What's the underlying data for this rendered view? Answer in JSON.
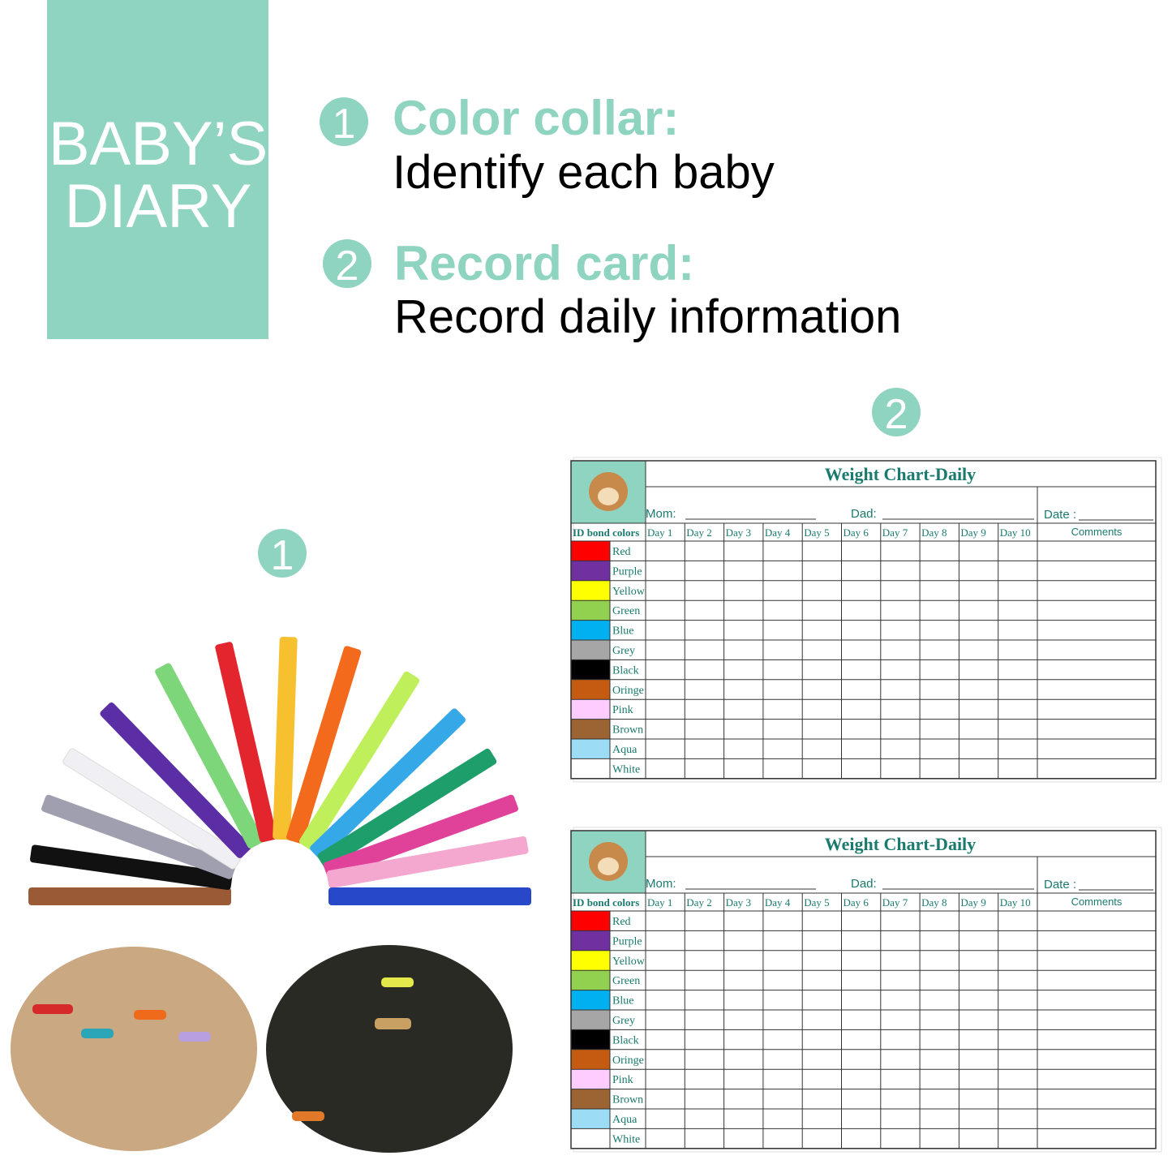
{
  "banner": {
    "lines": [
      "BABY’S",
      "DIARY"
    ]
  },
  "features": [
    {
      "number": "1",
      "title": "Color collar:",
      "text": "Identify each baby"
    },
    {
      "number": "2",
      "title": "Record card:",
      "text": "Record daily information"
    }
  ],
  "markers": [
    "1",
    "2"
  ],
  "cards": [
    {
      "title": "Weight Chart-Daily",
      "mom": "Mom:",
      "dad": "Dad:",
      "date": "Date :",
      "id_header": "ID bond colors",
      "days": [
        "Day 1",
        "Day 2",
        "Day 3",
        "Day 4",
        "Day 5",
        "Day 6",
        "Day 7",
        "Day 8",
        "Day 9",
        "Day 10"
      ],
      "comments": "Comments",
      "rows": [
        {
          "name": "Red",
          "color": "#ff0000"
        },
        {
          "name": "Purple",
          "color": "#7030a0"
        },
        {
          "name": "Yellow",
          "color": "#ffff00"
        },
        {
          "name": "Green",
          "color": "#92d050"
        },
        {
          "name": "Blue",
          "color": "#00b0f0"
        },
        {
          "name": "Grey",
          "color": "#a6a6a6"
        },
        {
          "name": "Black",
          "color": "#000000"
        },
        {
          "name": "Oringe",
          "color": "#c55a11"
        },
        {
          "name": "Pink",
          "color": "#ffccff"
        },
        {
          "name": "Brown",
          "color": "#9c6432"
        },
        {
          "name": "Aqua",
          "color": "#9ddcf5"
        },
        {
          "name": "White",
          "color": "#ffffff"
        }
      ]
    },
    {
      "title": "Weight Chart-Daily",
      "mom": "Mom:",
      "dad": "Dad:",
      "date": "Date :",
      "id_header": "ID bond colors",
      "days": [
        "Day 1",
        "Day 2",
        "Day 3",
        "Day 4",
        "Day 5",
        "Day 6",
        "Day 7",
        "Day 8",
        "Day 9",
        "Day 10"
      ],
      "comments": "Comments",
      "rows": [
        {
          "name": "Red",
          "color": "#ff0000"
        },
        {
          "name": "Purple",
          "color": "#7030a0"
        },
        {
          "name": "Yellow",
          "color": "#ffff00"
        },
        {
          "name": "Green",
          "color": "#92d050"
        },
        {
          "name": "Blue",
          "color": "#00b0f0"
        },
        {
          "name": "Grey",
          "color": "#a6a6a6"
        },
        {
          "name": "Black",
          "color": "#000000"
        },
        {
          "name": "Oringe",
          "color": "#c55a11"
        },
        {
          "name": "Pink",
          "color": "#ffccff"
        },
        {
          "name": "Brown",
          "color": "#9c6432"
        },
        {
          "name": "Aqua",
          "color": "#9ddcf5"
        },
        {
          "name": "White",
          "color": "#ffffff"
        }
      ]
    }
  ]
}
